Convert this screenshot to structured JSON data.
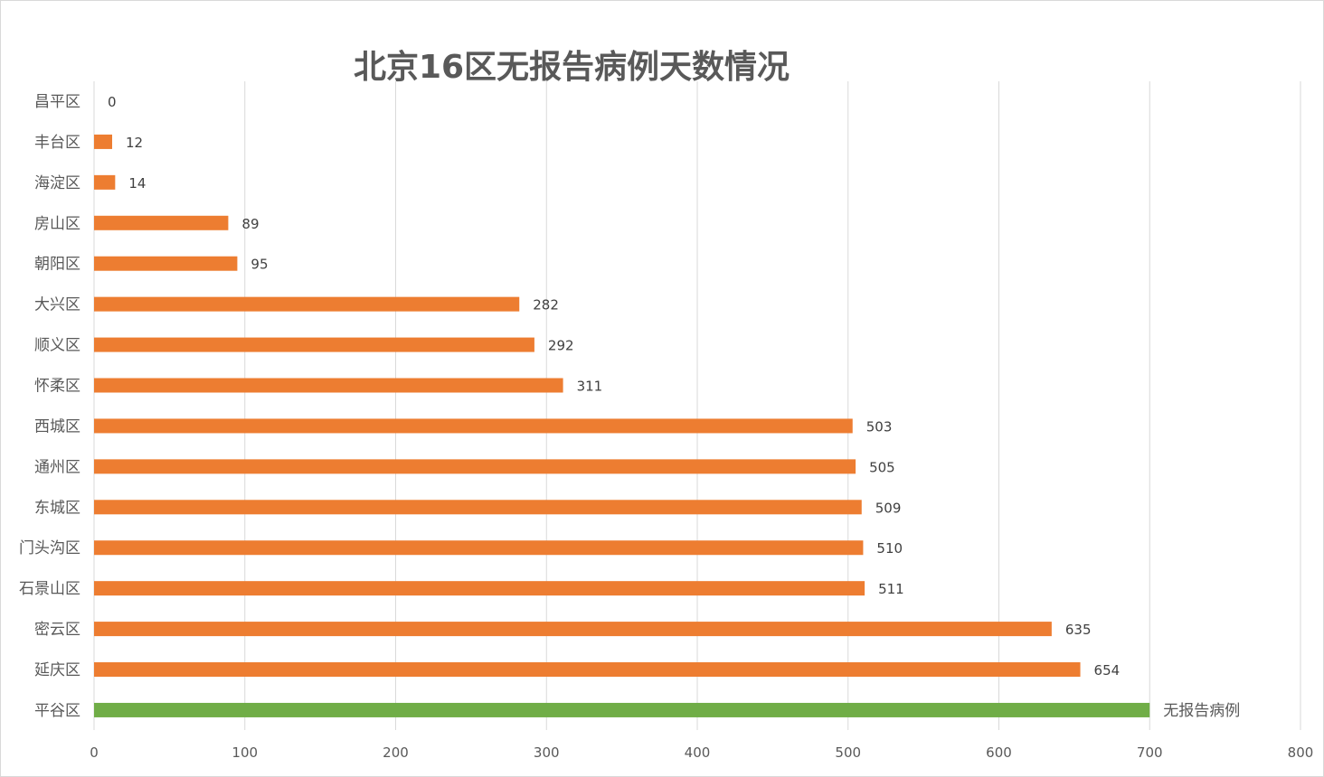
{
  "chart_data": {
    "type": "bar",
    "orientation": "horizontal",
    "title": "北京16区无报告病例天数情况",
    "xlabel": "",
    "ylabel": "",
    "xlim": [
      0,
      800
    ],
    "xticks": [
      0,
      100,
      200,
      300,
      400,
      500,
      600,
      700,
      800
    ],
    "grid": "vertical",
    "legend": "none",
    "colors": {
      "default": "#ED7D31",
      "highlight": "#70AD47",
      "grid": "#d9d9d9",
      "text": "#595959"
    },
    "categories": [
      "昌平区",
      "丰台区",
      "海淀区",
      "房山区",
      "朝阳区",
      "大兴区",
      "顺义区",
      "怀柔区",
      "西城区",
      "通州区",
      "东城区",
      "门头沟区",
      "石景山区",
      "密云区",
      "延庆区",
      "平谷区"
    ],
    "values": [
      0,
      12,
      14,
      89,
      95,
      282,
      292,
      311,
      503,
      505,
      509,
      510,
      511,
      635,
      654,
      700
    ],
    "data_labels": [
      "0",
      "12",
      "14",
      "89",
      "95",
      "282",
      "292",
      "311",
      "503",
      "505",
      "509",
      "510",
      "511",
      "635",
      "654",
      "无报告病例"
    ],
    "highlight_index": 15
  }
}
